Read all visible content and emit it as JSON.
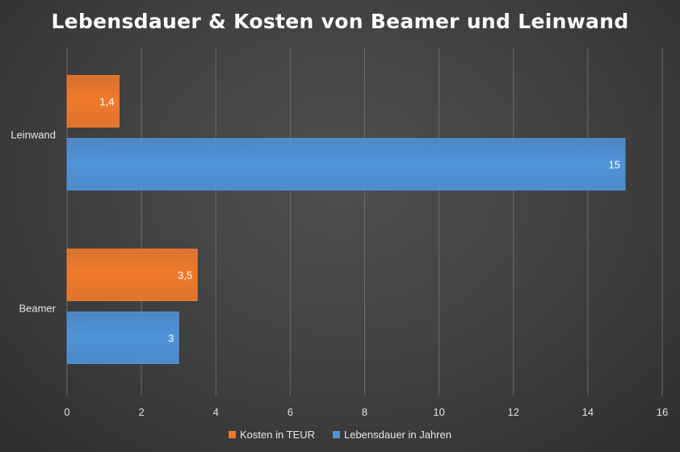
{
  "chart_data": {
    "type": "bar",
    "orientation": "horizontal",
    "title": "Lebensdauer & Kosten von Beamer und Leinwand",
    "categories": [
      "Leinwand",
      "Beamer"
    ],
    "series": [
      {
        "name": "Kosten in TEUR",
        "color": "#f07a2c",
        "values": [
          1.4,
          3.5
        ],
        "labels": [
          "1,4",
          "3,5"
        ]
      },
      {
        "name": "Lebensdauer in Jahren",
        "color": "#4f93d8",
        "values": [
          15,
          3
        ],
        "labels": [
          "15",
          "3"
        ]
      }
    ],
    "xlim": [
      0,
      16
    ],
    "xticks": [
      0,
      2,
      4,
      6,
      8,
      10,
      12,
      14,
      16
    ],
    "grid": true,
    "legend_position": "bottom"
  }
}
